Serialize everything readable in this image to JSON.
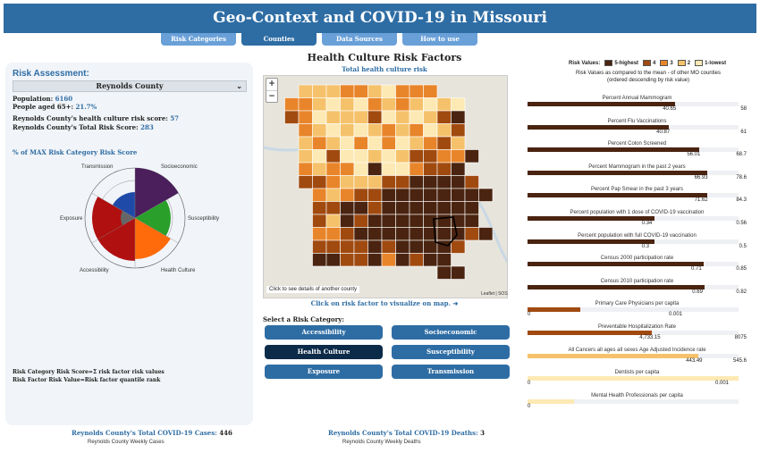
{
  "header": {
    "title": "Geo-Context and COVID-19 in Missouri"
  },
  "tabs": [
    {
      "label": "Risk Categories",
      "active": false
    },
    {
      "label": "Counties",
      "active": true
    },
    {
      "label": "Data Sources",
      "active": false
    },
    {
      "label": "How to use",
      "active": false
    }
  ],
  "assessment": {
    "title": "Risk Assessment:",
    "county": "Reynolds County",
    "population_label": "Population:",
    "population": "6160",
    "aged_label": "People aged 65+:",
    "aged": "21.7%",
    "health_risk_label": "Reynolds County's health culture risk score:",
    "health_risk": "57",
    "total_risk_label": "Reynolds County's Total Risk Score:",
    "total_risk": "283",
    "pct_title": "% of MAX Risk Category Risk Score",
    "radar_labels": {
      "transmission": "Transmission",
      "socioeconomic": "Socioeconomic",
      "exposure": "Exposure",
      "susceptibility": "Susceptibility",
      "accessibility": "Accessibility",
      "health_culture": "Health Culture"
    },
    "note1": "Risk Category Risk Score=Σ risk factor risk values",
    "note2": "Risk Factor Risk Value=Risk factor quantile rank"
  },
  "center": {
    "title": "Health Culture Risk Factors",
    "subtitle": "Total health culture risk",
    "map_hint": "Click to see details of another county",
    "attribution": "Leaflet | SOS",
    "click_risk": "Click on risk factor to visualize on map. ➜",
    "select_label": "Select a Risk Category:",
    "categories": [
      {
        "label": "Accessibility",
        "active": false
      },
      {
        "label": "Socioeconomic",
        "active": false
      },
      {
        "label": "Health Culture",
        "active": true
      },
      {
        "label": "Susceptibility",
        "active": false
      },
      {
        "label": "Exposure",
        "active": false
      },
      {
        "label": "Transmission",
        "active": false
      }
    ]
  },
  "legend": {
    "title": "Risk Values:",
    "items": [
      {
        "label": "5-highest",
        "color": "#4a2410"
      },
      {
        "label": "4",
        "color": "#a04a10"
      },
      {
        "label": "3",
        "color": "#e8852a"
      },
      {
        "label": "2",
        "color": "#f5c26b"
      },
      {
        "label": "1-lowest",
        "color": "#fde9b4"
      }
    ],
    "note1": "Risk Values as compared to the mean - of other MO counties",
    "note2": "(ordered descending by risk value)"
  },
  "risk_factors": [
    {
      "label": "Percent Annual Mammogram",
      "value": "40.65",
      "max": "58",
      "fraction": 0.7,
      "color": "#4a2410"
    },
    {
      "label": "Percent Flu Vaccinations",
      "value": "40.87",
      "max": "61",
      "fraction": 0.67,
      "color": "#4a2410"
    },
    {
      "label": "Percent Colon Screened",
      "value": "56.01",
      "max": "68.7",
      "fraction": 0.815,
      "color": "#4a2410"
    },
    {
      "label": "Percent Mammogram in the past 2 years",
      "value": "66.93",
      "max": "78.6",
      "fraction": 0.85,
      "color": "#4a2410"
    },
    {
      "label": "Percent Pap Smear in the past 3 years",
      "value": "71.62",
      "max": "84.3",
      "fraction": 0.85,
      "color": "#4a2410"
    },
    {
      "label": "Percent population with 1 dose of COVID-19 vaccination",
      "value": "0.34",
      "max": "0.56",
      "fraction": 0.6,
      "color": "#4a2410"
    },
    {
      "label": "Percent population with full COVID-19 vaccination",
      "value": "0.3",
      "max": "0.5",
      "fraction": 0.6,
      "color": "#4a2410"
    },
    {
      "label": "Census 2000 participation rate",
      "value": "0.71",
      "max": "0.85",
      "fraction": 0.835,
      "color": "#4a2410"
    },
    {
      "label": "Census 2010 participation rate",
      "value": "0.69",
      "max": "0.82",
      "fraction": 0.84,
      "color": "#4a2410"
    },
    {
      "label": "Primary Care Physicians per capita",
      "value": "0.001",
      "min": "0",
      "fraction": 0.25,
      "color": "#a04a10"
    },
    {
      "label": "Preventable Hospitalization Rate",
      "value": "4,733.15",
      "max": "8075",
      "fraction": 0.59,
      "color": "#a04a10"
    },
    {
      "label": "All Cancers all ages all sexes Age Adjusted Incidence rate",
      "value": "443.49",
      "max": "545.6",
      "fraction": 0.81,
      "color": "#f5c26b"
    },
    {
      "label": "Dentists per capita",
      "value": "0.001",
      "min": "0",
      "fraction": 1.0,
      "color": "#fde9b4"
    },
    {
      "label": "Mental Health Professionals per capita",
      "value": "",
      "min": "0",
      "fraction": 0.22,
      "color": "#fde9b4"
    }
  ],
  "bottom": {
    "cases_label": "Reynolds County's Total COVID-19 Cases:",
    "cases": "446",
    "cases_sub": "Reynolds County Weekly Cases",
    "deaths_label": "Reynolds County's Total COVID-19 Deaths:",
    "deaths": "3",
    "deaths_sub": "Reynolds County Weekly Deaths"
  }
}
